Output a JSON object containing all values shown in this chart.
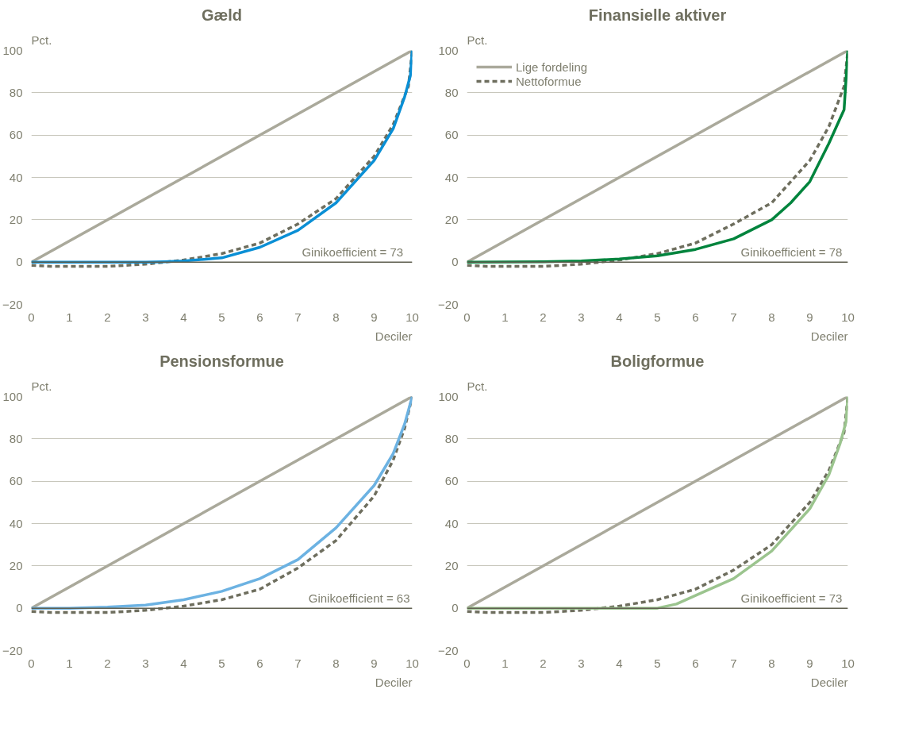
{
  "chart_data": [
    {
      "type": "line",
      "title": "Gæld",
      "ylabel": "Pct.",
      "xlabel": "Deciler",
      "xlim": [
        0,
        10
      ],
      "ylim": [
        -20,
        100
      ],
      "xticks": [
        0,
        1,
        2,
        3,
        4,
        5,
        6,
        7,
        8,
        9,
        10
      ],
      "yticks": [
        -20,
        0,
        20,
        40,
        60,
        80,
        100
      ],
      "grid": "y",
      "line_style": "solid",
      "marker": "none",
      "ref_lines": [
        {
          "axis": "y",
          "value": 0,
          "color": "#5f5f4f"
        }
      ],
      "annotations": [
        "Ginikoefficient   = 73"
      ],
      "series": [
        {
          "color": "#aaa99b",
          "x": [
            0,
            10
          ],
          "values": [
            0,
            100
          ]
        },
        {
          "color": "#6e6e5e",
          "line_style": "dashed",
          "x": [
            0,
            0.5,
            1,
            2,
            3,
            3.5,
            4,
            5,
            6,
            7,
            8,
            9,
            9.5,
            9.9,
            10
          ],
          "values": [
            -1.5,
            -2,
            -2,
            -2,
            -1,
            0,
            1,
            4,
            9,
            18,
            30,
            50,
            65,
            83,
            100
          ]
        },
        {
          "color": "#0a8fd5",
          "x": [
            0,
            1,
            2,
            3,
            3.5,
            4,
            5,
            6,
            7,
            8,
            9,
            9.5,
            9.8,
            9.95,
            10
          ],
          "values": [
            0,
            0,
            0,
            0,
            0.2,
            0.5,
            2,
            7,
            15,
            28,
            48,
            63,
            78,
            88,
            100
          ]
        }
      ]
    },
    {
      "type": "line",
      "title": "Finansielle aktiver",
      "ylabel": "Pct.",
      "xlabel": "Deciler",
      "xlim": [
        0,
        10
      ],
      "ylim": [
        -20,
        100
      ],
      "xticks": [
        0,
        1,
        2,
        3,
        4,
        5,
        6,
        7,
        8,
        9,
        10
      ],
      "yticks": [
        -20,
        0,
        20,
        40,
        60,
        80,
        100
      ],
      "grid": "y",
      "legend": "top left",
      "line_style": "solid",
      "marker": "none",
      "ref_lines": [
        {
          "axis": "y",
          "value": 0,
          "color": "#5f5f4f"
        }
      ],
      "annotations": [
        "Ginikoefficient  = 78"
      ],
      "series": [
        {
          "name": "Lige fordeling",
          "color": "#aaa99b",
          "x": [
            0,
            10
          ],
          "values": [
            0,
            100
          ]
        },
        {
          "name": "Nettoformue",
          "color": "#6e6e5e",
          "line_style": "dashed",
          "x": [
            0,
            0.5,
            1,
            2,
            3,
            3.5,
            4,
            5,
            6,
            7,
            8,
            9,
            9.5,
            9.9,
            10
          ],
          "values": [
            -1.5,
            -2,
            -2,
            -2,
            -1,
            0,
            1,
            4,
            9,
            18,
            28,
            48,
            64,
            83,
            100
          ]
        },
        {
          "color": "#00843d",
          "x": [
            0,
            2,
            3,
            4,
            5,
            6,
            7,
            8,
            8.5,
            9,
            9.5,
            9.8,
            9.9,
            10
          ],
          "values": [
            0,
            0.2,
            0.5,
            1.5,
            3,
            6,
            11,
            20,
            28,
            38,
            56,
            68,
            72,
            100
          ]
        }
      ]
    },
    {
      "type": "line",
      "title": "Pensionsformue",
      "ylabel": "Pct.",
      "xlabel": "Deciler",
      "xlim": [
        0,
        10
      ],
      "ylim": [
        -20,
        100
      ],
      "xticks": [
        0,
        1,
        2,
        3,
        4,
        5,
        6,
        7,
        8,
        9,
        10
      ],
      "yticks": [
        -20,
        0,
        20,
        40,
        60,
        80,
        100
      ],
      "grid": "y",
      "line_style": "solid",
      "marker": "none",
      "ref_lines": [
        {
          "axis": "y",
          "value": 0,
          "color": "#5f5f4f"
        }
      ],
      "annotations": [
        "Ginikoefficient = 63"
      ],
      "series": [
        {
          "color": "#aaa99b",
          "x": [
            0,
            10
          ],
          "values": [
            0,
            100
          ]
        },
        {
          "color": "#6e6e5e",
          "line_style": "dashed",
          "x": [
            0,
            0.5,
            1,
            2,
            3,
            3.5,
            4,
            5,
            6,
            7,
            8,
            9,
            9.5,
            9.8,
            10
          ],
          "values": [
            -1.5,
            -2,
            -2,
            -2,
            -1,
            0,
            1,
            4,
            9,
            19,
            32,
            53,
            70,
            85,
            100
          ]
        },
        {
          "color": "#6cb2e2",
          "x": [
            0,
            1,
            2,
            3,
            4,
            5,
            6,
            7,
            8,
            9,
            9.5,
            9.8,
            10
          ],
          "values": [
            0,
            0,
            0.5,
            1.5,
            4,
            8,
            14,
            23,
            38,
            58,
            73,
            87,
            100
          ]
        }
      ]
    },
    {
      "type": "line",
      "title": "Boligformue",
      "ylabel": "Pct.",
      "xlabel": "Deciler",
      "xlim": [
        0,
        10
      ],
      "ylim": [
        -20,
        100
      ],
      "xticks": [
        0,
        1,
        2,
        3,
        4,
        5,
        6,
        7,
        8,
        9,
        10
      ],
      "yticks": [
        -20,
        0,
        20,
        40,
        60,
        80,
        100
      ],
      "grid": "y",
      "line_style": "solid",
      "marker": "none",
      "ref_lines": [
        {
          "axis": "y",
          "value": 0,
          "color": "#5f5f4f"
        }
      ],
      "annotations": [
        "Ginikoefficient  = 73"
      ],
      "series": [
        {
          "color": "#aaa99b",
          "x": [
            0,
            10
          ],
          "values": [
            0,
            100
          ]
        },
        {
          "color": "#6e6e5e",
          "line_style": "dashed",
          "x": [
            0,
            0.5,
            1,
            2,
            3,
            3.5,
            4,
            5,
            6,
            7,
            8,
            9,
            9.5,
            9.9,
            10
          ],
          "values": [
            -1.5,
            -2,
            -2,
            -2,
            -1,
            0,
            1,
            4,
            9,
            18,
            30,
            50,
            65,
            83,
            100
          ]
        },
        {
          "color": "#9bc48e",
          "x": [
            0,
            1,
            2,
            3,
            4,
            5,
            5.5,
            6,
            7,
            8,
            9,
            9.5,
            9.8,
            9.95,
            10
          ],
          "values": [
            0,
            0,
            0,
            0,
            0,
            0,
            2,
            6,
            14,
            27,
            47,
            63,
            78,
            88,
            100
          ]
        }
      ]
    }
  ]
}
